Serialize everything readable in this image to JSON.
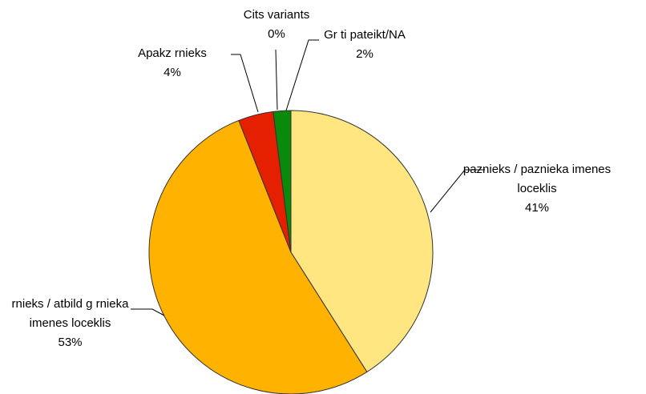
{
  "chart_data": {
    "type": "pie",
    "categories": [
      "paznieks / paznieka imenes loceklis",
      "rnieks / atbild g rnieka imenes loceklis",
      "Apakz rnieks",
      "Cits variants",
      "Gr ti pateikt/NA"
    ],
    "values": [
      41,
      53,
      4,
      0,
      2
    ],
    "value_labels": [
      "41%",
      "53%",
      "4%",
      "0%",
      "2%"
    ],
    "colors": [
      "#ffe680",
      "#ffb300",
      "#e52000",
      "#2a2a80",
      "#0a8a0a"
    ]
  }
}
